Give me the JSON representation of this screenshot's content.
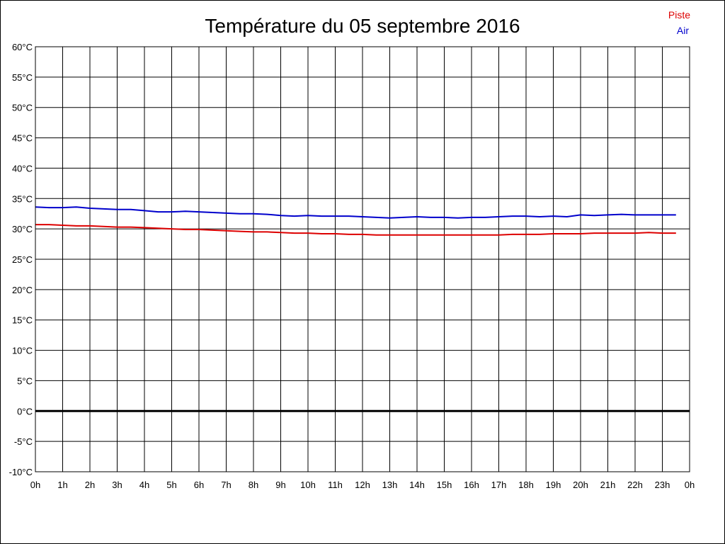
{
  "chart_data": {
    "type": "line",
    "title": "Température du 05 septembre 2016",
    "xlabel": "",
    "ylabel": "",
    "x_tick_labels": [
      "0h",
      "1h",
      "2h",
      "3h",
      "4h",
      "5h",
      "6h",
      "7h",
      "8h",
      "9h",
      "10h",
      "11h",
      "12h",
      "13h",
      "14h",
      "15h",
      "16h",
      "17h",
      "18h",
      "19h",
      "20h",
      "21h",
      "22h",
      "23h",
      "0h"
    ],
    "y_tick_labels": [
      "60°C",
      "55°C",
      "50°C",
      "45°C",
      "40°C",
      "35°C",
      "30°C",
      "25°C",
      "20°C",
      "15°C",
      "10°C",
      "5°C",
      "0°C",
      "-5°C",
      "-10°C"
    ],
    "xlim": [
      0,
      24
    ],
    "ylim": [
      -10,
      60
    ],
    "grid": true,
    "legend_position": "top-right",
    "zero_line": true,
    "series": [
      {
        "name": "Piste",
        "color": "#dd0000",
        "x": [
          0,
          0.5,
          1,
          1.5,
          2,
          2.5,
          3,
          3.5,
          4,
          4.5,
          5,
          5.5,
          6,
          6.5,
          7,
          7.5,
          8,
          8.5,
          9,
          9.5,
          10,
          10.5,
          11,
          11.5,
          12,
          12.5,
          13,
          13.5,
          14,
          14.5,
          15,
          15.5,
          16,
          16.5,
          17,
          17.5,
          18,
          18.5,
          19,
          19.5,
          20,
          20.5,
          21,
          21.5,
          22,
          22.5,
          23,
          23.5
        ],
        "values": [
          30.7,
          30.7,
          30.6,
          30.5,
          30.5,
          30.4,
          30.3,
          30.3,
          30.2,
          30.1,
          30.0,
          29.9,
          29.9,
          29.8,
          29.7,
          29.6,
          29.5,
          29.5,
          29.4,
          29.3,
          29.3,
          29.2,
          29.2,
          29.1,
          29.1,
          29.0,
          29.0,
          29.0,
          29.0,
          29.0,
          29.0,
          29.0,
          29.0,
          29.0,
          29.0,
          29.1,
          29.1,
          29.1,
          29.2,
          29.2,
          29.2,
          29.3,
          29.3,
          29.3,
          29.3,
          29.4,
          29.3,
          29.3
        ]
      },
      {
        "name": "Air",
        "color": "#0000cc",
        "x": [
          0,
          0.5,
          1,
          1.5,
          2,
          2.5,
          3,
          3.5,
          4,
          4.5,
          5,
          5.5,
          6,
          6.5,
          7,
          7.5,
          8,
          8.5,
          9,
          9.5,
          10,
          10.5,
          11,
          11.5,
          12,
          12.5,
          13,
          13.5,
          14,
          14.5,
          15,
          15.5,
          16,
          16.5,
          17,
          17.5,
          18,
          18.5,
          19,
          19.5,
          20,
          20.5,
          21,
          21.5,
          22,
          22.5,
          23,
          23.5
        ],
        "values": [
          33.6,
          33.5,
          33.5,
          33.6,
          33.4,
          33.3,
          33.2,
          33.2,
          33.0,
          32.8,
          32.8,
          32.9,
          32.8,
          32.7,
          32.6,
          32.5,
          32.5,
          32.4,
          32.2,
          32.1,
          32.2,
          32.1,
          32.1,
          32.1,
          32.0,
          31.9,
          31.8,
          31.9,
          32.0,
          31.9,
          31.9,
          31.8,
          31.9,
          31.9,
          32.0,
          32.1,
          32.1,
          32.0,
          32.1,
          32.0,
          32.3,
          32.2,
          32.3,
          32.4,
          32.3,
          32.3,
          32.3,
          32.3
        ]
      }
    ]
  }
}
